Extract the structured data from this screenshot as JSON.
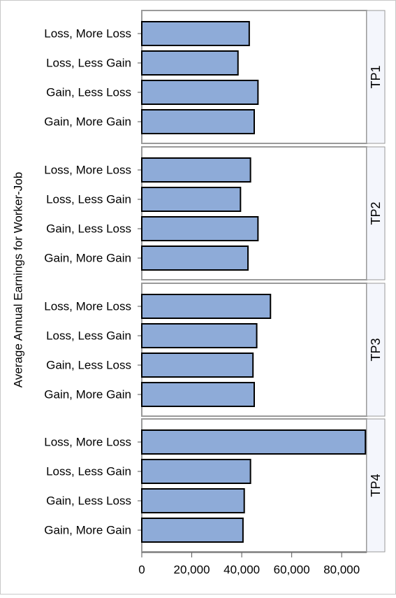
{
  "chart_data": {
    "type": "bar",
    "orientation": "horizontal",
    "ylabel": "Average Annual Earnings for Worker-Job",
    "xlabel": "",
    "xlim": [
      0,
      90000
    ],
    "xticks": [
      0,
      20000,
      40000,
      60000,
      80000
    ],
    "xtick_labels": [
      "0",
      "20,000",
      "40,000",
      "60,000",
      "80,000"
    ],
    "categories": [
      "Loss, More Loss",
      "Loss, Less Gain",
      "Gain, Less Loss",
      "Gain, More Gain"
    ],
    "panels": [
      {
        "name": "TP1",
        "values": [
          43000,
          38500,
          46500,
          45000
        ]
      },
      {
        "name": "TP2",
        "values": [
          43500,
          39500,
          46500,
          42500
        ]
      },
      {
        "name": "TP3",
        "values": [
          51500,
          46000,
          44500,
          45000
        ]
      },
      {
        "name": "TP4",
        "values": [
          89500,
          43500,
          41000,
          40500
        ]
      }
    ],
    "grid": false,
    "legend": "none"
  },
  "colors": {
    "bar_fill": "#8EABD8",
    "bar_stroke": "#000000",
    "panel_border": "#9a9a9a",
    "strip_fill": "#f4f6fc",
    "outer_border": "#c8c8c8",
    "text": "#000000"
  }
}
